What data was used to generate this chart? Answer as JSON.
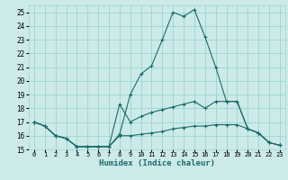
{
  "xlabel": "Humidex (Indice chaleur)",
  "background_color": "#cceae8",
  "grid_color": "#99d5d2",
  "line_color": "#1a6b6b",
  "xlim": [
    -0.5,
    23.5
  ],
  "ylim": [
    15,
    25.5
  ],
  "xticks": [
    0,
    1,
    2,
    3,
    4,
    5,
    6,
    7,
    8,
    9,
    10,
    11,
    12,
    13,
    14,
    15,
    16,
    17,
    18,
    19,
    20,
    21,
    22,
    23
  ],
  "yticks": [
    15,
    16,
    17,
    18,
    19,
    20,
    21,
    22,
    23,
    24,
    25
  ],
  "line_peak_x": [
    0,
    1,
    2,
    3,
    4,
    5,
    6,
    7,
    8,
    9,
    10,
    11,
    12,
    13,
    14,
    15,
    16,
    17,
    18,
    19,
    20,
    21,
    22,
    23
  ],
  "line_peak_y": [
    17.0,
    16.7,
    16.0,
    15.8,
    15.2,
    15.2,
    15.2,
    15.2,
    16.1,
    19.0,
    20.5,
    21.1,
    23.0,
    25.0,
    24.7,
    25.2,
    23.2,
    21.0,
    18.5,
    18.5,
    16.5,
    16.2,
    15.5,
    15.3
  ],
  "line_mid_x": [
    0,
    1,
    2,
    3,
    4,
    5,
    6,
    7,
    8,
    9,
    10,
    11,
    12,
    13,
    14,
    15,
    16,
    17,
    18,
    19,
    20,
    21,
    22,
    23
  ],
  "line_mid_y": [
    17.0,
    16.7,
    16.0,
    15.8,
    15.2,
    15.2,
    15.2,
    15.2,
    18.3,
    17.0,
    17.4,
    17.7,
    17.9,
    18.1,
    18.3,
    18.5,
    18.0,
    18.5,
    18.5,
    18.5,
    16.5,
    16.2,
    15.5,
    15.3
  ],
  "line_low_x": [
    0,
    1,
    2,
    3,
    4,
    5,
    6,
    7,
    8,
    9,
    10,
    11,
    12,
    13,
    14,
    15,
    16,
    17,
    18,
    19,
    20,
    21,
    22,
    23
  ],
  "line_low_y": [
    17.0,
    16.7,
    16.0,
    15.8,
    15.2,
    15.2,
    15.2,
    15.2,
    16.0,
    16.0,
    16.1,
    16.2,
    16.3,
    16.5,
    16.6,
    16.7,
    16.7,
    16.8,
    16.8,
    16.8,
    16.5,
    16.2,
    15.5,
    15.3
  ]
}
